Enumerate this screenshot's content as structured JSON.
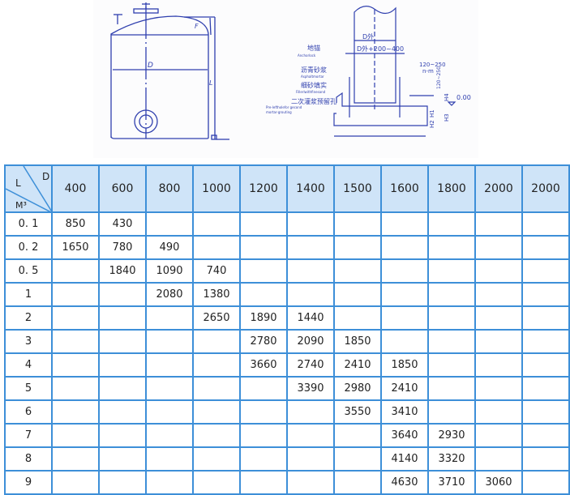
{
  "drawing_left": {
    "labels": {
      "diameter": "D",
      "height_f": "F",
      "length": "L"
    }
  },
  "drawing_right": {
    "labels": {
      "outer_diameter": "D外",
      "base_width": "D外+200~400",
      "anchor_cn": "地锚",
      "anchor_en": "Anchorlock",
      "asphalt_cn": "沥青砂浆",
      "asphalt_en": "Asphaltmortar",
      "fill_cn": "细砂填实",
      "fill_en": "Fillerlwithfinesand",
      "grout_cn": "二次灌浆预留孔",
      "grout_en1": "Pre-leftholefor gecond",
      "grout_en2": "mortar-grouting",
      "gap": "120~250",
      "nm": "n-m",
      "vert": "120~250",
      "h1": "H1",
      "h2": "H2",
      "h3": "H3",
      "h4": "H4",
      "level": "0.00"
    }
  },
  "table": {
    "corner": {
      "l": "L",
      "d": "D",
      "m": "M³"
    },
    "columns": [
      "400",
      "600",
      "800",
      "1000",
      "1200",
      "1400",
      "1500",
      "1600",
      "1800",
      "2000",
      "2000"
    ],
    "rows": [
      {
        "m3": "0. 1",
        "cells": [
          "850",
          "430",
          "",
          "",
          "",
          "",
          "",
          "",
          "",
          "",
          ""
        ]
      },
      {
        "m3": "0. 2",
        "cells": [
          "1650",
          "780",
          "490",
          "",
          "",
          "",
          "",
          "",
          "",
          "",
          ""
        ]
      },
      {
        "m3": "0. 5",
        "cells": [
          "",
          "1840",
          "1090",
          "740",
          "",
          "",
          "",
          "",
          "",
          "",
          ""
        ]
      },
      {
        "m3": "1",
        "cells": [
          "",
          "",
          "2080",
          "1380",
          "",
          "",
          "",
          "",
          "",
          "",
          ""
        ]
      },
      {
        "m3": "2",
        "cells": [
          "",
          "",
          "",
          "2650",
          "1890",
          "1440",
          "",
          "",
          "",
          "",
          ""
        ]
      },
      {
        "m3": "3",
        "cells": [
          "",
          "",
          "",
          "",
          "2780",
          "2090",
          "1850",
          "",
          "",
          "",
          ""
        ]
      },
      {
        "m3": "4",
        "cells": [
          "",
          "",
          "",
          "",
          "3660",
          "2740",
          "2410",
          "1850",
          "",
          "",
          ""
        ]
      },
      {
        "m3": "5",
        "cells": [
          "",
          "",
          "",
          "",
          "",
          "3390",
          "2980",
          "2410",
          "",
          "",
          ""
        ]
      },
      {
        "m3": "6",
        "cells": [
          "",
          "",
          "",
          "",
          "",
          "",
          "3550",
          "3410",
          "",
          "",
          ""
        ]
      },
      {
        "m3": "7",
        "cells": [
          "",
          "",
          "",
          "",
          "",
          "",
          "",
          "3640",
          "2930",
          "",
          ""
        ]
      },
      {
        "m3": "8",
        "cells": [
          "",
          "",
          "",
          "",
          "",
          "",
          "",
          "4140",
          "3320",
          "",
          ""
        ]
      },
      {
        "m3": "9",
        "cells": [
          "",
          "",
          "",
          "",
          "",
          "",
          "",
          "4630",
          "3710",
          "3060",
          ""
        ]
      }
    ]
  },
  "colors": {
    "line": "#2f3fae",
    "grid": "#3d8fd8",
    "header_bg": "#cfe4f8"
  }
}
